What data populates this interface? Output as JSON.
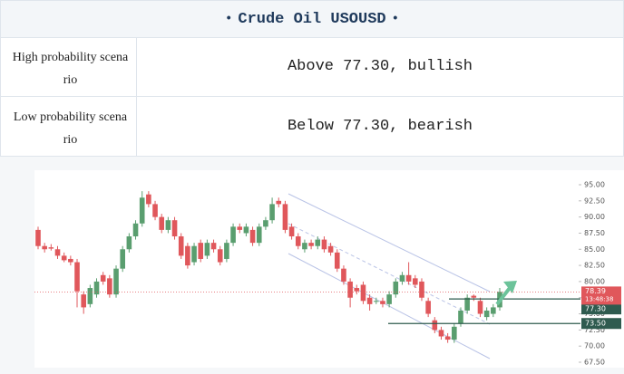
{
  "header": {
    "title": "Crude Oil USOUSD"
  },
  "table": {
    "rows": [
      [
        "High probability scenario",
        "Above 77.30, bullish"
      ],
      [
        "Low probability scenario",
        "Below 77.30, bearish"
      ]
    ]
  },
  "chart_data": {
    "type": "candlestick",
    "up_color": "#5a9e6f",
    "down_color": "#e0575b",
    "open": [
      88,
      85.5,
      85.3,
      85,
      84,
      83.5,
      83,
      78,
      76.5,
      78,
      81,
      80.5,
      78,
      82,
      85,
      87,
      89,
      93.5,
      92,
      90,
      88,
      89.5,
      87,
      85.5,
      83,
      86,
      84,
      86,
      85,
      83.5,
      86,
      88.5,
      87.5,
      88,
      86,
      88.5,
      89.5,
      92.5,
      92,
      88.5,
      87,
      85,
      86,
      85.5,
      86.5,
      85.5,
      84.5,
      82,
      80,
      79,
      79.5,
      77.5,
      77,
      77,
      76.5,
      78,
      80,
      81,
      80.5,
      80,
      77,
      74,
      72.5,
      71.5,
      71,
      73.5,
      75.5,
      77.8,
      77,
      74.5,
      75,
      76
    ],
    "high": [
      88.5,
      86,
      85.8,
      85.5,
      84.5,
      84,
      83.5,
      78.5,
      79.5,
      80.5,
      81.5,
      81,
      82.5,
      85.5,
      87.5,
      89.5,
      94,
      94,
      92.5,
      90.5,
      90,
      90,
      87.5,
      86,
      86,
      86.5,
      86.5,
      86.5,
      85.5,
      86.5,
      89,
      89,
      89,
      88.5,
      89,
      90,
      93,
      93,
      92.5,
      89,
      87.5,
      86.5,
      86.5,
      87,
      87,
      86,
      85,
      82.5,
      80.5,
      79.5,
      80,
      78,
      77.5,
      77.5,
      78.5,
      80.5,
      81.5,
      83,
      81,
      80.5,
      77.5,
      74.5,
      73,
      72,
      73.5,
      76,
      78,
      78,
      77.5,
      76,
      76.5,
      79
    ],
    "low": [
      85,
      84.5,
      84.8,
      83.5,
      83,
      82.5,
      76,
      75,
      76,
      77.5,
      79.5,
      77.5,
      77.5,
      81.5,
      84.5,
      86.5,
      88.5,
      91.5,
      89.5,
      87.5,
      87.5,
      86.5,
      83.5,
      82,
      82.5,
      83,
      83.5,
      84.5,
      82.5,
      83,
      85.5,
      87.5,
      87,
      85.5,
      85.5,
      88,
      89,
      91.5,
      87.5,
      86.5,
      85,
      84.5,
      85,
      85,
      84.5,
      84,
      81.5,
      79.5,
      76,
      78,
      76.5,
      75.5,
      76.5,
      76,
      76,
      77.5,
      79.5,
      79.5,
      79,
      77,
      74.5,
      72,
      71,
      70.5,
      70.5,
      73,
      75,
      77,
      74.5,
      74,
      74.5,
      75.5
    ],
    "close": [
      85.5,
      85,
      85.1,
      84,
      83.3,
      83,
      78.5,
      76,
      79,
      80,
      80,
      78,
      82,
      85,
      87,
      89,
      93,
      92,
      90,
      88,
      89.5,
      87,
      84,
      82.5,
      85.5,
      83.5,
      86,
      85,
      83,
      86,
      88.5,
      88,
      88.5,
      86,
      88.5,
      89.5,
      92,
      92,
      88,
      87,
      85.5,
      86,
      85.5,
      86.5,
      85,
      84.5,
      82,
      80,
      77.5,
      78.5,
      77,
      76.5,
      77,
      76.5,
      78,
      80,
      81,
      80,
      79.5,
      77.5,
      75,
      72.5,
      71.5,
      71,
      73,
      75.5,
      77.5,
      77.5,
      75,
      75.5,
      76,
      78.4
    ],
    "ylim": [
      67.5,
      95
    ],
    "yticks": [
      {
        "value": 67.5,
        "label": "67.50"
      },
      {
        "value": 70,
        "label": "70.00"
      },
      {
        "value": 72.5,
        "label": "72.50"
      },
      {
        "value": 75,
        "label": "75.00"
      },
      {
        "value": 77.5,
        "label": "77.50"
      },
      {
        "value": 80,
        "label": "80.00"
      },
      {
        "value": 82.5,
        "label": "82.50"
      },
      {
        "value": 85,
        "label": "85.00"
      },
      {
        "value": 87.5,
        "label": "87.50"
      },
      {
        "value": 90,
        "label": "90.00"
      },
      {
        "value": 92.5,
        "label": "92.50"
      },
      {
        "value": 95,
        "label": "95.00"
      }
    ],
    "current_price": {
      "value": 78.39,
      "label": "78.39",
      "time": "13:48:38"
    },
    "levels": [
      {
        "value": 77.3,
        "label": "77.30"
      },
      {
        "value": 73.5,
        "label": "73.50"
      }
    ]
  }
}
